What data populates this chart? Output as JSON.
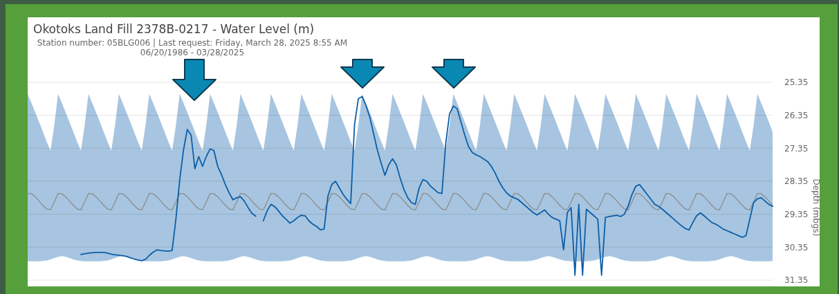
{
  "chart_data": {
    "type": "line",
    "title": "Okotoks Land Fill 2378B-0217 - Water Level (m)",
    "subtitle": "Station number: 05BLG006 | Last request: Friday, March 28, 2025 8:55 AM\n06/20/1986 - 03/28/2025",
    "ylabel": "Depth (mbgs)",
    "categories": [
      null,
      null,
      null,
      null,
      null,
      null,
      null,
      null,
      null,
      null,
      null,
      null,
      null,
      null,
      null,
      null,
      null,
      null,
      null,
      null,
      null,
      null,
      null,
      null,
      null,
      null,
      null,
      null,
      null,
      null,
      null,
      null,
      null,
      null,
      null,
      null,
      null,
      null,
      null,
      null,
      null,
      null,
      null,
      null,
      null,
      null,
      null,
      null,
      null,
      null,
      null,
      null,
      null,
      null,
      null,
      null,
      null,
      null,
      null,
      null,
      null,
      null,
      null,
      null,
      null,
      null,
      null,
      null,
      null,
      null,
      null,
      null,
      null,
      null,
      null,
      null,
      null,
      null,
      null,
      null,
      null,
      null,
      null,
      null,
      null,
      null,
      null,
      null,
      null,
      null,
      null,
      null,
      null,
      null,
      null,
      null,
      null,
      null,
      null,
      null,
      null,
      null,
      null,
      null,
      null,
      null,
      null,
      null,
      null,
      null,
      null,
      null,
      null,
      null,
      null,
      null,
      null,
      null,
      null,
      null,
      null,
      null,
      null,
      null,
      null,
      null,
      null,
      null,
      null,
      null,
      null,
      null,
      null,
      null,
      null,
      null,
      null,
      null,
      null,
      null,
      null,
      null,
      null,
      null,
      null,
      null,
      null,
      null,
      null,
      null,
      null,
      null,
      null,
      null,
      null,
      null,
      null,
      null,
      null,
      null,
      null,
      null,
      null,
      null,
      null,
      null,
      null,
      null,
      null,
      null,
      null,
      null,
      null,
      null,
      null,
      null,
      null,
      null,
      null,
      null,
      null,
      null,
      null,
      null,
      null,
      null,
      null,
      null,
      null,
      null,
      null,
      null,
      null,
      null,
      null,
      null,
      null
    ],
    "ylim": [
      31.35,
      25.35
    ],
    "yticks": [
      25.35,
      26.35,
      27.35,
      28.35,
      29.35,
      30.35,
      31.35
    ],
    "grid": "y",
    "tick_labels": "y",
    "series": [
      {
        "color": "#8c8c8c",
        "values": [
          28.72,
          28.73,
          28.82,
          28.95,
          29.08,
          29.19,
          29.22,
          28.98,
          28.72,
          28.73,
          28.82,
          28.95,
          29.08,
          29.19,
          29.22,
          28.98,
          28.72,
          28.73,
          28.82,
          28.95,
          29.08,
          29.19,
          29.22,
          28.98,
          28.72,
          28.73,
          28.82,
          28.95,
          29.08,
          29.19,
          29.22,
          28.98,
          28.72,
          28.73,
          28.82,
          28.95,
          29.08,
          29.19,
          29.22,
          28.98,
          28.72,
          28.73,
          28.82,
          28.95,
          29.08,
          29.19,
          29.22,
          28.98,
          28.72,
          28.73,
          28.82,
          28.95,
          29.08,
          29.19,
          29.22,
          28.98,
          28.72,
          28.73,
          28.82,
          28.95,
          29.08,
          29.19,
          29.22,
          28.98,
          28.72,
          28.73,
          28.82,
          28.95,
          29.08,
          29.19,
          29.22,
          28.98,
          28.72,
          28.73,
          28.82,
          28.95,
          29.08,
          29.19,
          29.22,
          28.98,
          28.72,
          28.73,
          28.82,
          28.95,
          29.08,
          29.19,
          29.22,
          28.98,
          28.72,
          28.73,
          28.82,
          28.95,
          29.08,
          29.19,
          29.22,
          28.98,
          28.72,
          28.73,
          28.82,
          28.95,
          29.08,
          29.19,
          29.22,
          28.98,
          28.72,
          28.73,
          28.82,
          28.95,
          29.08,
          29.19,
          29.22,
          28.98,
          28.72,
          28.73,
          28.82,
          28.95,
          29.08,
          29.19,
          29.22,
          28.98,
          28.72,
          28.73,
          28.82,
          28.95,
          29.08,
          29.19,
          29.22,
          28.98,
          28.72,
          28.73,
          28.82,
          28.95,
          29.08,
          29.19,
          29.22,
          28.98,
          28.72,
          28.73,
          28.82,
          28.95,
          29.08,
          29.19,
          29.22,
          28.98,
          28.72,
          28.73,
          28.82,
          28.95,
          29.08,
          29.19,
          29.22,
          28.98,
          28.72,
          28.73,
          28.82,
          28.95,
          29.08,
          29.19,
          29.22,
          28.98,
          28.72,
          28.73,
          28.82,
          28.95,
          29.08,
          29.19,
          29.22,
          28.98,
          28.72,
          28.73,
          28.82,
          28.95,
          29.08,
          29.19,
          29.22,
          28.98,
          28.72,
          28.73,
          28.82,
          28.95,
          29.08,
          29.19,
          29.22,
          28.98,
          28.72,
          28.73,
          28.82,
          28.95,
          29.08,
          29.19,
          29.22,
          28.98,
          28.72,
          28.73,
          28.82,
          28.95,
          29.08
        ]
      },
      {
        "color": "#0b5ea8",
        "values": [
          null,
          null,
          null,
          null,
          null,
          null,
          null,
          null,
          null,
          null,
          null,
          null,
          null,
          null,
          30.57,
          30.55,
          30.53,
          30.52,
          30.51,
          30.51,
          30.51,
          30.53,
          30.56,
          30.58,
          30.59,
          30.61,
          30.63,
          30.67,
          30.71,
          30.74,
          30.76,
          30.72,
          30.6,
          30.5,
          30.43,
          30.45,
          30.46,
          30.47,
          30.45,
          29.5,
          28.31,
          27.4,
          26.78,
          26.95,
          27.97,
          27.6,
          27.9,
          27.6,
          27.37,
          27.42,
          27.9,
          28.15,
          28.45,
          28.7,
          28.91,
          28.85,
          28.82,
          28.95,
          29.15,
          29.32,
          29.41,
          null,
          29.55,
          29.25,
          29.05,
          29.12,
          29.25,
          29.4,
          29.5,
          29.62,
          29.55,
          29.45,
          29.38,
          29.4,
          29.55,
          29.65,
          29.72,
          29.82,
          29.8,
          28.8,
          28.45,
          28.35,
          28.55,
          28.75,
          28.9,
          29.03,
          26.63,
          25.85,
          25.78,
          26.05,
          26.4,
          26.9,
          27.4,
          27.8,
          28.17,
          27.85,
          27.67,
          27.85,
          28.25,
          28.6,
          28.85,
          29.0,
          29.05,
          28.55,
          28.3,
          28.35,
          28.5,
          28.6,
          28.7,
          28.72,
          27.2,
          26.31,
          26.07,
          26.15,
          26.55,
          26.95,
          27.3,
          27.48,
          27.55,
          27.6,
          27.68,
          27.75,
          27.9,
          28.1,
          28.35,
          28.55,
          28.7,
          28.8,
          28.85,
          28.9,
          29.0,
          29.1,
          29.2,
          29.3,
          29.37,
          29.3,
          29.22,
          29.35,
          29.45,
          29.5,
          29.55,
          30.43,
          29.3,
          29.15,
          31.2,
          29.05,
          31.2,
          29.2,
          29.3,
          29.4,
          29.5,
          31.2,
          29.45,
          29.42,
          29.4,
          29.38,
          29.42,
          29.35,
          29.1,
          28.75,
          28.5,
          28.45,
          28.6,
          28.75,
          28.9,
          29.05,
          29.11,
          29.2,
          29.3,
          29.4,
          29.5,
          29.6,
          29.7,
          29.78,
          29.83,
          29.6,
          29.4,
          29.31,
          29.4,
          29.5,
          29.6,
          29.65,
          29.72,
          29.8,
          29.85,
          29.9,
          29.95,
          30.0,
          30.05,
          30.0,
          29.5,
          29.0,
          28.88,
          28.85,
          28.95,
          29.05,
          29.11
        ],
        "lower": [
          25.7,
          25.98,
          26.26,
          26.55,
          26.85,
          27.15,
          27.42,
          26.65,
          25.7,
          25.98,
          26.26,
          26.55,
          26.85,
          27.15,
          27.42,
          26.65,
          25.7,
          25.98,
          26.26,
          26.55,
          26.85,
          27.15,
          27.42,
          26.65,
          25.7,
          25.98,
          26.26,
          26.55,
          26.85,
          27.15,
          27.42,
          26.65,
          25.7,
          25.98,
          26.26,
          26.55,
          26.85,
          27.15,
          27.42,
          26.65,
          25.7,
          25.98,
          26.26,
          26.55,
          26.85,
          27.15,
          27.42,
          26.65,
          25.7,
          25.98,
          26.26,
          26.55,
          26.85,
          27.15,
          27.42,
          26.65,
          25.7,
          25.98,
          26.26,
          26.55,
          26.85,
          27.15,
          27.42,
          26.65,
          25.7,
          25.98,
          26.26,
          26.55,
          26.85,
          27.15,
          27.42,
          26.65,
          25.7,
          25.98,
          26.26,
          26.55,
          26.85,
          27.15,
          27.42,
          26.65,
          25.7,
          25.98,
          26.26,
          26.55,
          26.85,
          27.15,
          27.42,
          26.65,
          25.7,
          25.98,
          26.26,
          26.55,
          26.85,
          27.15,
          27.42,
          26.65,
          25.7,
          25.98,
          26.26,
          26.55,
          26.85,
          27.15,
          27.42,
          26.65,
          25.7,
          25.98,
          26.26,
          26.55,
          26.85,
          27.15,
          27.42,
          26.65,
          25.7,
          25.98,
          26.26,
          26.55,
          26.85,
          27.15,
          27.42,
          26.65,
          25.7,
          25.98,
          26.26,
          26.55,
          26.85,
          27.15,
          27.42,
          26.65,
          25.7,
          25.98,
          26.26,
          26.55,
          26.85,
          27.15,
          27.42,
          26.65,
          25.7,
          25.98,
          26.26,
          26.55,
          26.85,
          27.15,
          27.42,
          26.65,
          25.7,
          25.98,
          26.26,
          26.55,
          26.85,
          27.15,
          27.42,
          26.65,
          25.7,
          25.98,
          26.26,
          26.55,
          26.85,
          27.15,
          27.42,
          26.65,
          25.7,
          25.98,
          26.26,
          26.55,
          26.85,
          27.15,
          27.42,
          26.65,
          25.7,
          25.98,
          26.26,
          26.55,
          26.85,
          27.15,
          27.42,
          26.65,
          25.7,
          25.98,
          26.26,
          26.55,
          26.85,
          27.15,
          27.42,
          26.65,
          25.7,
          25.98,
          26.26,
          26.55,
          26.85,
          27.15,
          27.42,
          26.65,
          25.7,
          25.98,
          26.26,
          26.55,
          26.85
        ],
        "upper": [
          30.78,
          30.78,
          30.78,
          30.78,
          30.77,
          30.75,
          30.72,
          30.68,
          30.64,
          30.62,
          30.64,
          30.68,
          30.72,
          30.75,
          30.77,
          30.78,
          30.78,
          30.78,
          30.78,
          30.78,
          30.77,
          30.75,
          30.72,
          30.68,
          30.64,
          30.62,
          30.64,
          30.68,
          30.72,
          30.75,
          30.77,
          30.78,
          30.78,
          30.78,
          30.78,
          30.78,
          30.77,
          30.75,
          30.72,
          30.68,
          30.64,
          30.62,
          30.64,
          30.68,
          30.72,
          30.75,
          30.77,
          30.78,
          30.78,
          30.78,
          30.78,
          30.78,
          30.77,
          30.75,
          30.72,
          30.68,
          30.64,
          30.62,
          30.64,
          30.68,
          30.72,
          30.75,
          30.77,
          30.78,
          30.78,
          30.78,
          30.78,
          30.78,
          30.77,
          30.75,
          30.72,
          30.68,
          30.64,
          30.62,
          30.64,
          30.68,
          30.72,
          30.75,
          30.77,
          30.78,
          30.78,
          30.78,
          30.78,
          30.78,
          30.77,
          30.75,
          30.72,
          30.68,
          30.64,
          30.62,
          30.64,
          30.68,
          30.72,
          30.75,
          30.77,
          30.78,
          30.78,
          30.78,
          30.78,
          30.78,
          30.77,
          30.75,
          30.72,
          30.68,
          30.64,
          30.62,
          30.64,
          30.68,
          30.72,
          30.75,
          30.77,
          30.78,
          30.78,
          30.78,
          30.78,
          30.78,
          30.77,
          30.75,
          30.72,
          30.68,
          30.64,
          30.62,
          30.64,
          30.68,
          30.72,
          30.75,
          30.77,
          30.78,
          30.78,
          30.78,
          30.78,
          30.78,
          30.77,
          30.75,
          30.72,
          30.68,
          30.64,
          30.62,
          30.64,
          30.68,
          30.72,
          30.75,
          30.77,
          30.78,
          30.78,
          30.78,
          30.78,
          30.78,
          30.77,
          30.75,
          30.72,
          30.68,
          30.64,
          30.62,
          30.64,
          30.68,
          30.72,
          30.75,
          30.77,
          30.78,
          30.78,
          30.78,
          30.78,
          30.78,
          30.77,
          30.75,
          30.72,
          30.68,
          30.64,
          30.62,
          30.64,
          30.68,
          30.72,
          30.75,
          30.77,
          30.78,
          30.78,
          30.78,
          30.78,
          30.78,
          30.77,
          30.75,
          30.72,
          30.68,
          30.64,
          30.62,
          30.64,
          30.68,
          30.72,
          30.75,
          30.77,
          30.78,
          30.78,
          30.78,
          30.78,
          30.78,
          30.77
        ]
      }
    ]
  }
}
